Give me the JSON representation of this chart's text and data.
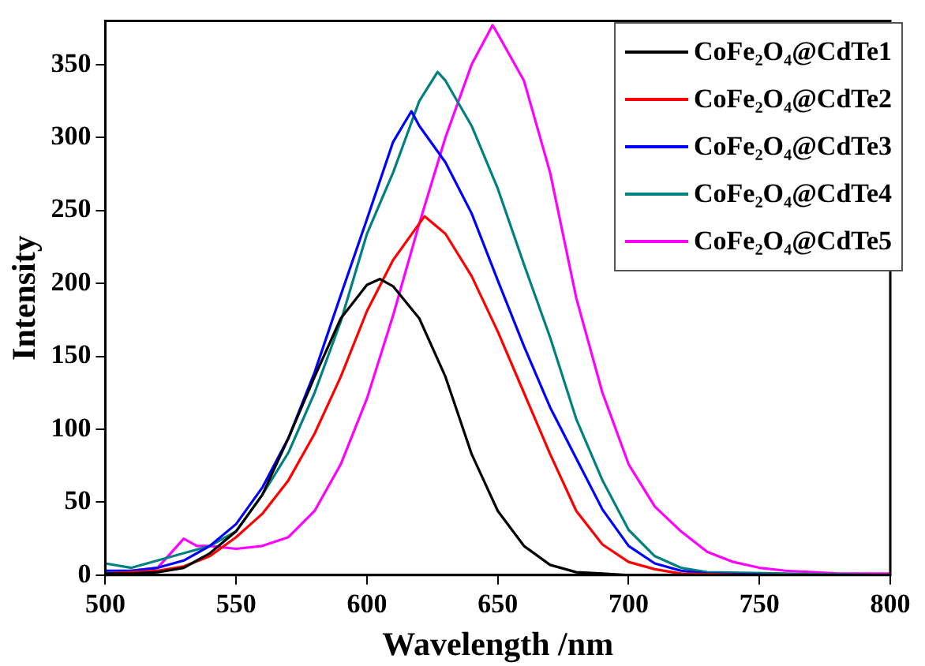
{
  "chart_data": {
    "type": "line",
    "xlabel": "Wavelength /nm",
    "ylabel": "Intensity",
    "xlim": [
      500,
      800
    ],
    "ylim": [
      0,
      380
    ],
    "xticks": [
      500,
      550,
      600,
      650,
      700,
      750,
      800
    ],
    "yticks": [
      0,
      50,
      100,
      150,
      200,
      250,
      300,
      350
    ],
    "grid": false,
    "legend": "top right",
    "marker": "none",
    "line_style": "solid",
    "series": [
      {
        "name": "CoFe₂O₄@CdTe1",
        "color": "#000000",
        "x": [
          500,
          510,
          520,
          530,
          540,
          550,
          560,
          570,
          580,
          590,
          600,
          605,
          610,
          620,
          630,
          640,
          650,
          660,
          670,
          680,
          690,
          700,
          750,
          800
        ],
        "values": [
          1,
          1,
          2,
          5,
          15,
          30,
          55,
          94,
          136,
          176,
          199,
          203,
          198,
          176,
          136,
          83,
          44,
          20,
          7,
          2,
          1,
          0,
          0,
          0
        ]
      },
      {
        "name": "CoFe₂O₄@CdTe2",
        "color": "#ff0000",
        "x": [
          500,
          510,
          520,
          530,
          540,
          550,
          560,
          570,
          580,
          590,
          600,
          610,
          622,
          630,
          640,
          650,
          660,
          670,
          680,
          690,
          700,
          710,
          720,
          750,
          800
        ],
        "values": [
          1,
          2,
          3,
          6,
          13,
          26,
          42,
          65,
          97,
          136,
          181,
          216,
          246,
          234,
          205,
          167,
          125,
          83,
          44,
          21,
          9,
          4,
          1,
          0,
          0
        ]
      },
      {
        "name": "CoFe₂O₄@CdTe3",
        "color": "#0000ff",
        "x": [
          500,
          510,
          520,
          530,
          540,
          550,
          560,
          570,
          580,
          590,
          600,
          610,
          617,
          620,
          630,
          640,
          650,
          660,
          670,
          680,
          690,
          700,
          710,
          720,
          730,
          760,
          800
        ],
        "values": [
          3,
          3,
          5,
          10,
          20,
          35,
          60,
          94,
          139,
          192,
          244,
          297,
          318,
          308,
          283,
          248,
          202,
          157,
          115,
          80,
          45,
          20,
          8,
          3,
          1,
          0,
          0
        ]
      },
      {
        "name": "CoFe₂O₄@CdTe4",
        "color": "#008080",
        "x": [
          500,
          510,
          520,
          530,
          540,
          550,
          560,
          570,
          580,
          590,
          600,
          610,
          620,
          627,
          630,
          640,
          650,
          660,
          670,
          680,
          690,
          700,
          710,
          720,
          730,
          760,
          800
        ],
        "values": [
          8,
          5,
          10,
          15,
          20,
          30,
          55,
          84,
          125,
          174,
          234,
          276,
          325,
          345,
          339,
          308,
          265,
          213,
          163,
          107,
          65,
          31,
          13,
          5,
          2,
          1,
          0
        ]
      },
      {
        "name": "CoFe₂O₄@CdTe5",
        "color": "#ff00ff",
        "x": [
          510,
          520,
          530,
          535,
          540,
          550,
          560,
          570,
          580,
          590,
          600,
          610,
          620,
          630,
          640,
          648,
          650,
          660,
          670,
          680,
          690,
          700,
          710,
          720,
          730,
          740,
          750,
          760,
          780,
          800
        ],
        "values": [
          3,
          5,
          25,
          20,
          20,
          18,
          20,
          26,
          44,
          76,
          121,
          178,
          241,
          300,
          350,
          377,
          371,
          339,
          276,
          190,
          125,
          76,
          47,
          30,
          16,
          9,
          5,
          3,
          1,
          1
        ]
      }
    ]
  }
}
